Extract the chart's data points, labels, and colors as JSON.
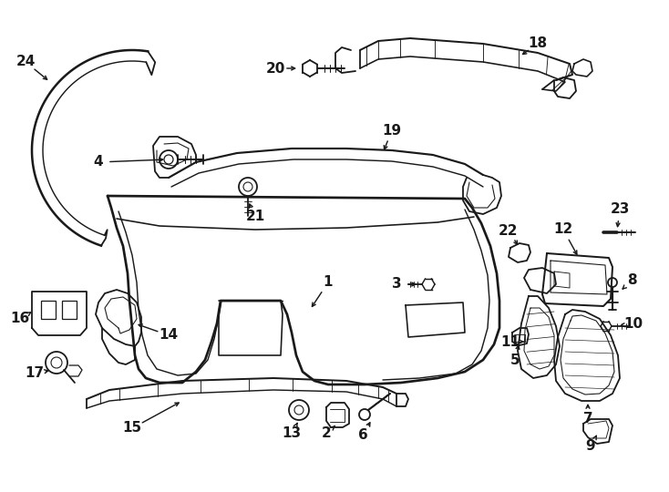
{
  "bg_color": "#ffffff",
  "line_color": "#1a1a1a",
  "lw": 1.3,
  "figsize": [
    7.34,
    5.4
  ],
  "dpi": 100,
  "label_fs": 11,
  "label_bold": true
}
